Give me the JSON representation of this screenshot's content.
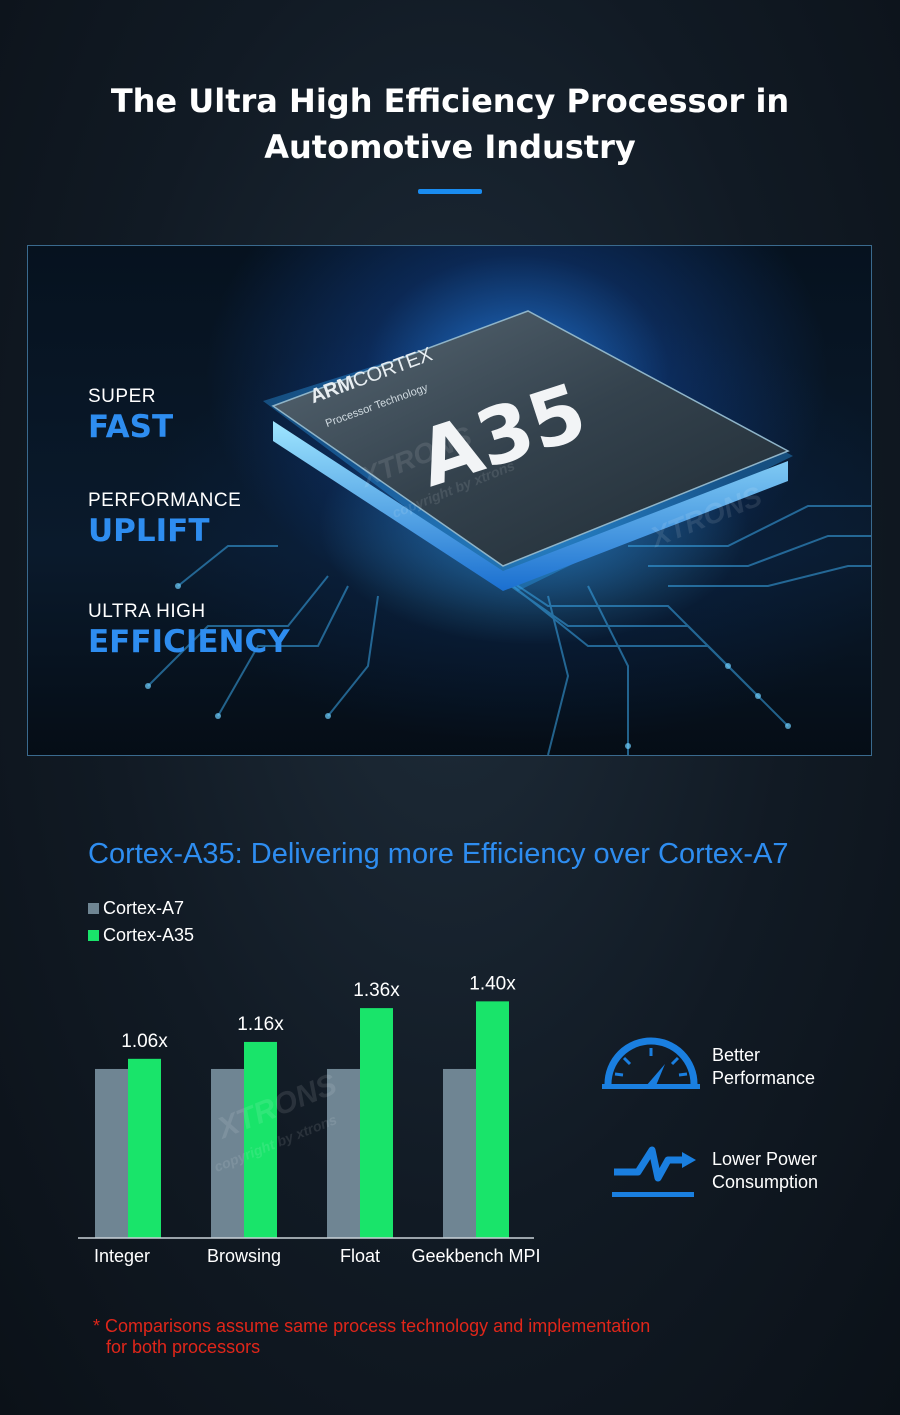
{
  "header": {
    "title_line1": "The Ultra High Efficiency Processor in",
    "title_line2": "Automotive Industry"
  },
  "hero": {
    "chip_brand_bold": "ARM",
    "chip_brand_light": "CORTEX",
    "chip_subtitle": "Processor Technology",
    "chip_model": "A35",
    "features": [
      {
        "small": "SUPER",
        "big": "FAST"
      },
      {
        "small": "PERFORMANCE",
        "big": "UPLIFT"
      },
      {
        "small": "ULTRA HIGH",
        "big": "EFFICIENCY"
      }
    ]
  },
  "chart_data": {
    "type": "bar",
    "title": "Cortex-A35: Delivering more Efficiency over Cortex-A7",
    "categories": [
      "Integer",
      "Browsing",
      "Float",
      "Geekbench MPI"
    ],
    "series": [
      {
        "name": "Cortex-A7",
        "values": [
          1.0,
          1.0,
          1.0,
          1.0
        ],
        "color": "#6f8593"
      },
      {
        "name": "Cortex-A35",
        "values": [
          1.06,
          1.16,
          1.36,
          1.4
        ],
        "color": "#19e46a"
      }
    ],
    "data_labels": [
      "1.06x",
      "1.16x",
      "1.36x",
      "1.40x"
    ],
    "ylim": [
      0,
      1.55
    ],
    "legend_position": "top-left",
    "grid": false
  },
  "side": {
    "items": [
      {
        "icon": "speedometer-icon",
        "line1": "Better",
        "line2": "Performance"
      },
      {
        "icon": "lightning-icon",
        "line1": "Lower Power",
        "line2": "Consumption"
      }
    ]
  },
  "footnote": {
    "line1": "* Comparisons assume same process technology and implementation",
    "line2": "for both processors"
  },
  "watermark": {
    "brand": "XTRONS",
    "copyright": "copyright by xtrons"
  },
  "colors": {
    "accent": "#2e8df0",
    "footnote": "#e0261a"
  }
}
